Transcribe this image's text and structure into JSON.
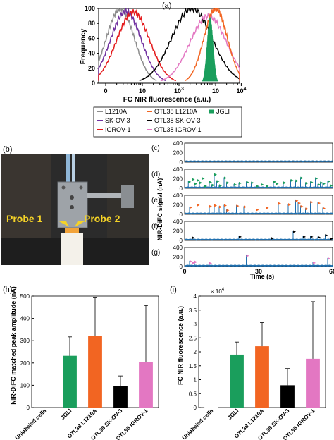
{
  "panel_letters": {
    "a": "(a)",
    "b": "(b)",
    "c": "(c)",
    "d": "(d)",
    "e": "(e)",
    "f": "(f)",
    "g": "(g)",
    "h": "(h)",
    "i": "(i)"
  },
  "photo": {
    "probe1": "Probe 1",
    "probe2": "Probe 2"
  },
  "colors": {
    "L1210A": "#8c8c8c",
    "SK-OV-3": "#7030a0",
    "IGROV-1": "#e41a1c",
    "OTL38 L1210A": "#f26522",
    "OTL38 SK-OV-3": "#000000",
    "OTL38 IGROV-1": "#e377c2",
    "JGLI": "#1a9e5c",
    "trace": "#1f6fae"
  },
  "chart_data": [
    {
      "id": "a",
      "type": "line",
      "ylabel": "Frequency",
      "xlabel": "FC NIR fluorescence (a.u.)",
      "yticks": [
        "0",
        "20",
        "40",
        "60",
        "80",
        "100"
      ],
      "xticks": [
        "0",
        "10",
        "10",
        "10",
        "10"
      ],
      "xtick_exponents": [
        "",
        "",
        "3",
        "",
        "4"
      ],
      "ylim": [
        0,
        100
      ],
      "legend": [
        "L1210A",
        "OTL38 L1210A",
        "JGLI",
        "SK-OV-3",
        "OTL38 SK-OV-3",
        "IGROV-1",
        "OTL38 IGROV-1"
      ],
      "series": [
        {
          "name": "L1210A",
          "peak_x": 0.4,
          "peak": 100
        },
        {
          "name": "SK-OV-3",
          "peak_x": 0.55,
          "peak": 96
        },
        {
          "name": "IGROV-1",
          "peak_x": 0.75,
          "peak": 95
        },
        {
          "name": "OTL38 SK-OV-3",
          "peak_x": 2.35,
          "peak": 100
        },
        {
          "name": "OTL38 IGROV-1",
          "peak_x": 2.8,
          "peak": 90
        },
        {
          "name": "OTL38 L1210A",
          "peak_x": 3.0,
          "peak": 100
        },
        {
          "name": "JGLI",
          "peak_x": 2.85,
          "peak": 85
        }
      ]
    },
    {
      "id": "c-g",
      "type": "scatter",
      "ylabel": "NIR-DiFC signal (nA)",
      "xlabel": "Time (s)",
      "xticks": [
        "0",
        "30",
        "60"
      ],
      "xlim": [
        0,
        60
      ],
      "yticks": [
        "0",
        "200",
        "400"
      ],
      "ylim": [
        0,
        400
      ],
      "panels": [
        {
          "id": "c",
          "marker": "",
          "peaks": []
        },
        {
          "id": "d",
          "marker": "JGLI",
          "peaks": [
            [
              1.5,
              150
            ],
            [
              3,
              200
            ],
            [
              4,
              110
            ],
            [
              5,
              180
            ],
            [
              6,
              130
            ],
            [
              7,
              220
            ],
            [
              8,
              60
            ],
            [
              10,
              140
            ],
            [
              11,
              80
            ],
            [
              12,
              300
            ],
            [
              13,
              160
            ],
            [
              14,
              70
            ],
            [
              16,
              230
            ],
            [
              17,
              130
            ],
            [
              20,
              90
            ],
            [
              22,
              120
            ],
            [
              25,
              140
            ],
            [
              27,
              130
            ],
            [
              29,
              60
            ],
            [
              31,
              90
            ],
            [
              33,
              60
            ],
            [
              36,
              150
            ],
            [
              37,
              110
            ],
            [
              40,
              130
            ],
            [
              43,
              180
            ],
            [
              45,
              170
            ],
            [
              47,
              230
            ],
            [
              49,
              120
            ],
            [
              51,
              140
            ],
            [
              53,
              220
            ],
            [
              54,
              90
            ],
            [
              55,
              130
            ],
            [
              56,
              110
            ],
            [
              58,
              160
            ],
            [
              59,
              70
            ]
          ]
        },
        {
          "id": "e",
          "marker": "OTL38 L1210A",
          "peaks": [
            [
              2,
              160
            ],
            [
              5,
              210
            ],
            [
              10,
              180
            ],
            [
              12,
              200
            ],
            [
              14,
              170
            ],
            [
              16,
              200
            ],
            [
              17,
              100
            ],
            [
              21,
              190
            ],
            [
              24,
              170
            ],
            [
              29,
              110
            ],
            [
              33,
              150
            ],
            [
              38,
              240
            ],
            [
              42,
              220
            ],
            [
              45,
              300
            ],
            [
              46,
              250
            ],
            [
              47,
              180
            ],
            [
              49,
              130
            ],
            [
              51,
              270
            ],
            [
              54,
              250
            ],
            [
              56,
              140
            ]
          ]
        },
        {
          "id": "f",
          "marker": "OTL38 SK-OV-3",
          "peaks": [
            [
              3,
              70
            ],
            [
              22,
              90
            ],
            [
              35,
              60
            ],
            [
              44,
              200
            ],
            [
              48,
              90
            ],
            [
              51,
              90
            ],
            [
              54,
              80
            ],
            [
              57,
              120
            ],
            [
              59,
              50
            ]
          ]
        },
        {
          "id": "g",
          "marker": "OTL38 IGROV-1",
          "peaks": [
            [
              2,
              120
            ],
            [
              3,
              90
            ],
            [
              4,
              110
            ],
            [
              10,
              80
            ],
            [
              25,
              240
            ],
            [
              52,
              90
            ],
            [
              58,
              180
            ]
          ]
        }
      ]
    },
    {
      "id": "h",
      "type": "bar",
      "ylabel": "NIR-DiFC matched peak amplitude (nA)",
      "yticks": [
        "0",
        "100",
        "200",
        "300",
        "400",
        "500"
      ],
      "ylim": [
        0,
        500
      ],
      "categories": [
        "Unlabeled cells",
        "JGLI",
        "OTL38 L1210A",
        "OTL38 SK-OV-3",
        "OTL38 IGROV-1"
      ],
      "values": [
        0,
        232,
        320,
        97,
        203
      ],
      "errors": [
        0,
        85,
        175,
        45,
        255
      ]
    },
    {
      "id": "i",
      "type": "bar",
      "ylabel": "FC NIR fluorescence (a.u.)",
      "yticks": [
        "0",
        "0.5",
        "1",
        "1.5",
        "2",
        "2.5",
        "3",
        "3.5",
        "4"
      ],
      "ylim": [
        0,
        40000
      ],
      "multiplier": "× 10",
      "multiplier_exp": "4",
      "categories": [
        "Unlabeled cells",
        "JGLI",
        "OTL38 L1210A",
        "OTL38 SK-OV-3",
        "OTL38 IGROV-1"
      ],
      "values": [
        200,
        19000,
        22000,
        8000,
        17500
      ],
      "errors": [
        0,
        4500,
        8500,
        6000,
        20500
      ]
    }
  ]
}
